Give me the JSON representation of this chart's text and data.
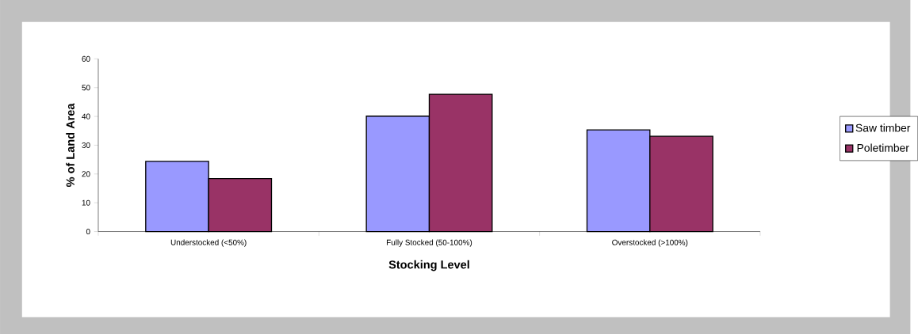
{
  "chart_data": {
    "type": "bar",
    "xlabel": "Stocking Level",
    "ylabel": "% of Land Area",
    "categories": [
      "Understocked (<50%)",
      "Fully Stocked (50-100%)",
      "Overstocked (>100%)"
    ],
    "series": [
      {
        "name": "Saw timber",
        "color": "#9999ff",
        "values": [
          24.4,
          40.1,
          35.3
        ]
      },
      {
        "name": "Poletimber",
        "color": "#993366",
        "values": [
          18.4,
          47.7,
          33.1
        ]
      }
    ],
    "ylim": [
      0,
      60
    ],
    "yticks": [
      0,
      10,
      20,
      30,
      40,
      50,
      60
    ],
    "grid": false,
    "legend": "right"
  }
}
